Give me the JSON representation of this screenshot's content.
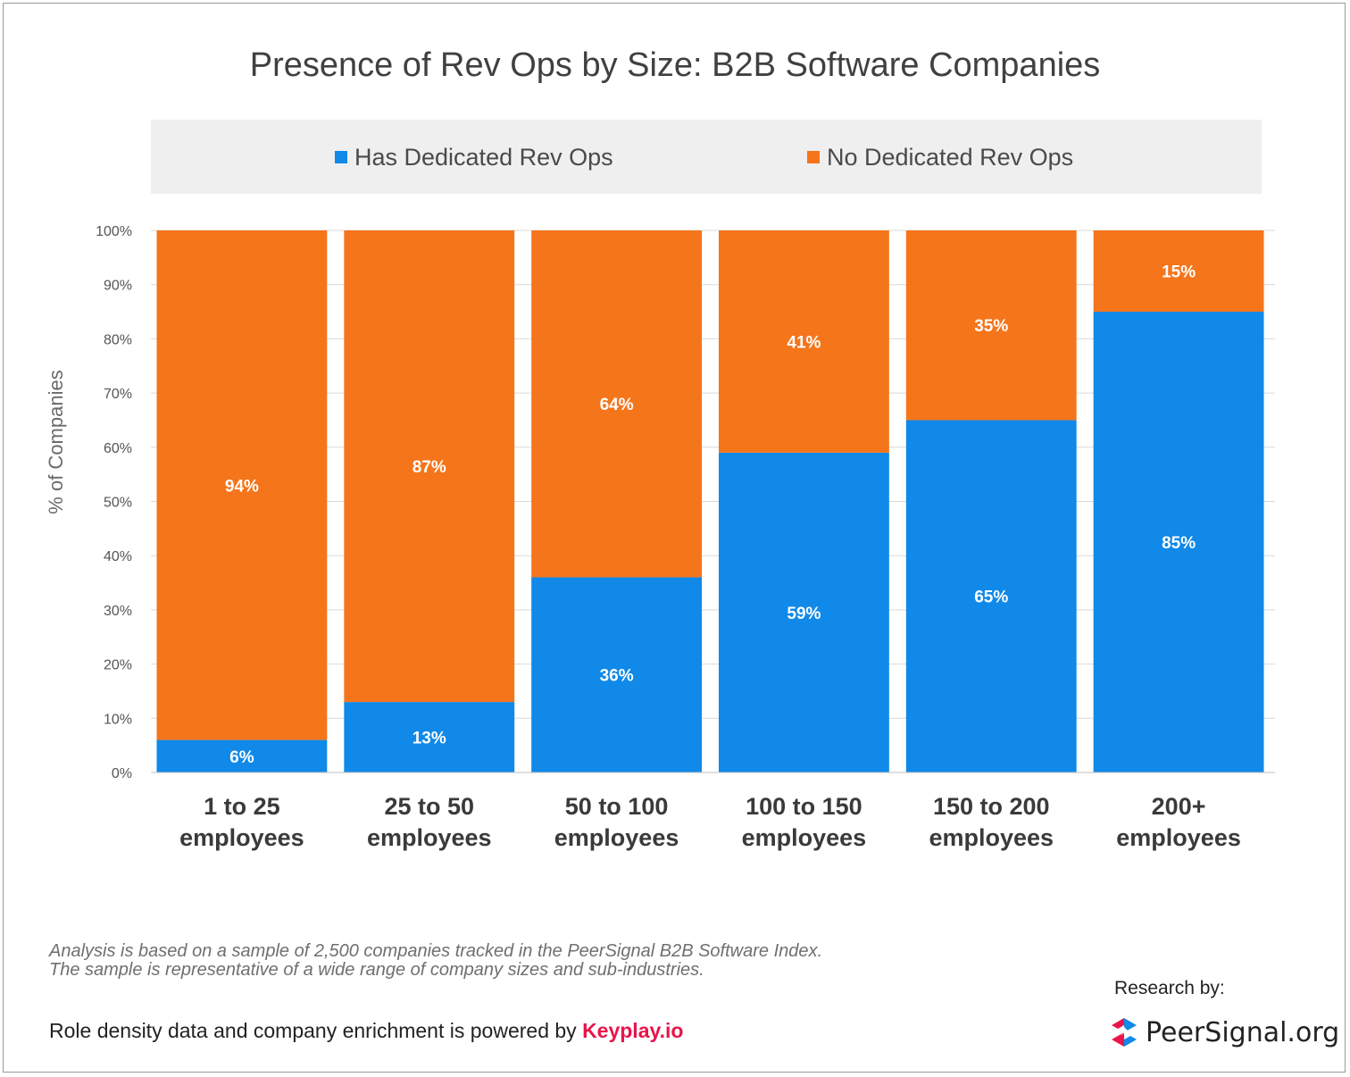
{
  "chart_data": {
    "type": "bar",
    "stacked": true,
    "title": "Presence of Rev Ops by Size: B2B Software Companies",
    "ylabel": "% of Companies",
    "ylim": [
      0,
      100
    ],
    "yticks": [
      "0%",
      "10%",
      "20%",
      "30%",
      "40%",
      "50%",
      "60%",
      "70%",
      "80%",
      "90%",
      "100%"
    ],
    "grid": true,
    "legend_position": "top",
    "categories": [
      [
        "1 to 25",
        "employees"
      ],
      [
        "25 to 50",
        "employees"
      ],
      [
        "50 to 100",
        "employees"
      ],
      [
        "100 to 150",
        "employees"
      ],
      [
        "150 to 200",
        "employees"
      ],
      [
        "200+",
        "employees"
      ]
    ],
    "series": [
      {
        "name": "Has Dedicated Rev Ops",
        "color": "#1089e8",
        "values": [
          6,
          13,
          36,
          59,
          65,
          85
        ],
        "labels": [
          "6%",
          "13%",
          "36%",
          "59%",
          "65%",
          "85%"
        ]
      },
      {
        "name": "No Dedicated Rev Ops",
        "color": "#f5751b",
        "values": [
          94,
          87,
          64,
          41,
          35,
          15
        ],
        "labels": [
          "94%",
          "87%",
          "64%",
          "41%",
          "35%",
          "15%"
        ]
      }
    ]
  },
  "footnote": "Analysis is based on a sample of 2,500 companies tracked in the PeerSignal B2B Software Index. The sample is representative of a wide range of company sizes and sub-industries.",
  "powered_by": {
    "text": "Role density data and company enrichment is powered by ",
    "link": "Keyplay.io",
    "link_color": "#e8144a"
  },
  "research": {
    "label": "Research by:",
    "brand": "PeerSignal.org",
    "logo_icon": "peersignal-logo-icon"
  }
}
